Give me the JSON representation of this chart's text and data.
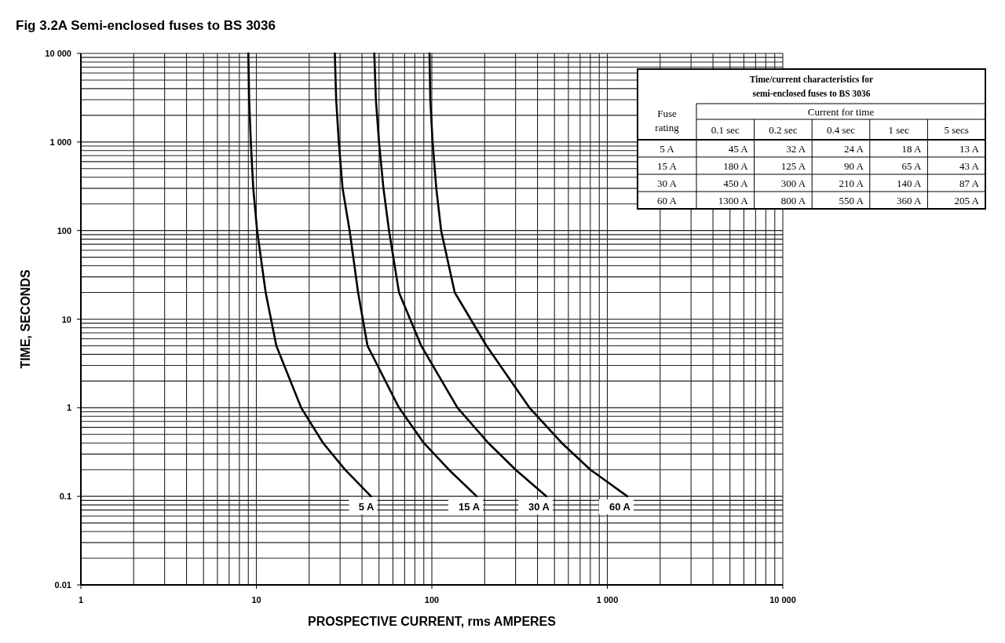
{
  "chart_data": [
    {
      "type": "line",
      "title": "Fig 3.2A Semi-enclosed fuses to BS 3036",
      "xlabel": "PROSPECTIVE CURRENT, rms AMPERES",
      "ylabel": "TIME, SECONDS",
      "log": "xy",
      "grid": true,
      "xlim": [
        1,
        10000
      ],
      "ylim": [
        0.01,
        10000
      ],
      "xticks": [
        1,
        10,
        100,
        {
          "value": 1000,
          "label": "1 000"
        },
        {
          "value": 10000,
          "label": "10 000"
        }
      ],
      "yticks": [
        0.01,
        0.1,
        1,
        10,
        100,
        {
          "value": 1000,
          "label": "1 000"
        },
        {
          "value": 10000,
          "label": "10 000"
        }
      ],
      "series": [
        {
          "name": "5 A",
          "color": "#000000",
          "x": [
            9,
            9.1,
            9.3,
            9.6,
            10.1,
            11.3,
            13,
            18,
            24,
            32,
            45
          ],
          "values": [
            10000,
            3000,
            1000,
            300,
            100,
            20,
            5,
            1,
            0.4,
            0.2,
            0.1
          ]
        },
        {
          "name": "15 A",
          "color": "#000000",
          "x": [
            28,
            28.5,
            29.5,
            31,
            34,
            38,
            43,
            65,
            90,
            125,
            180
          ],
          "values": [
            10000,
            3000,
            1000,
            300,
            100,
            20,
            5,
            1,
            0.4,
            0.2,
            0.1
          ]
        },
        {
          "name": "30 A",
          "color": "#000000",
          "x": [
            47,
            48,
            50,
            53,
            57,
            65,
            87,
            140,
            210,
            300,
            450
          ],
          "values": [
            10000,
            3000,
            1000,
            300,
            100,
            20,
            5,
            1,
            0.4,
            0.2,
            0.1
          ]
        },
        {
          "name": "60 A",
          "color": "#000000",
          "x": [
            97,
            98,
            101,
            106,
            113,
            135,
            205,
            360,
            550,
            800,
            1300
          ],
          "values": [
            10000,
            3000,
            1000,
            300,
            100,
            20,
            5,
            1,
            0.4,
            0.2,
            0.1
          ]
        }
      ]
    },
    {
      "type": "other",
      "title": "Time/current characteristics for semi-enclosed fuses to BS 3036",
      "ylabel": "Fuse rating",
      "xlabel": "Current for time",
      "categories": [
        "0.1 sec",
        "0.2 sec",
        "0.4 sec",
        "1 sec",
        "5 secs"
      ],
      "y_categories": [
        "5 A",
        "15 A",
        "30 A",
        "60 A"
      ],
      "cell_labels": [
        [
          "45 A",
          "32 A",
          "24 A",
          "18 A",
          "13 A"
        ],
        [
          "180 A",
          "125 A",
          "90 A",
          "65 A",
          "43 A"
        ],
        [
          "450 A",
          "300 A",
          "210 A",
          "140 A",
          "87 A"
        ],
        [
          "1300 A",
          "800 A",
          "550 A",
          "360 A",
          "205 A"
        ]
      ]
    }
  ]
}
